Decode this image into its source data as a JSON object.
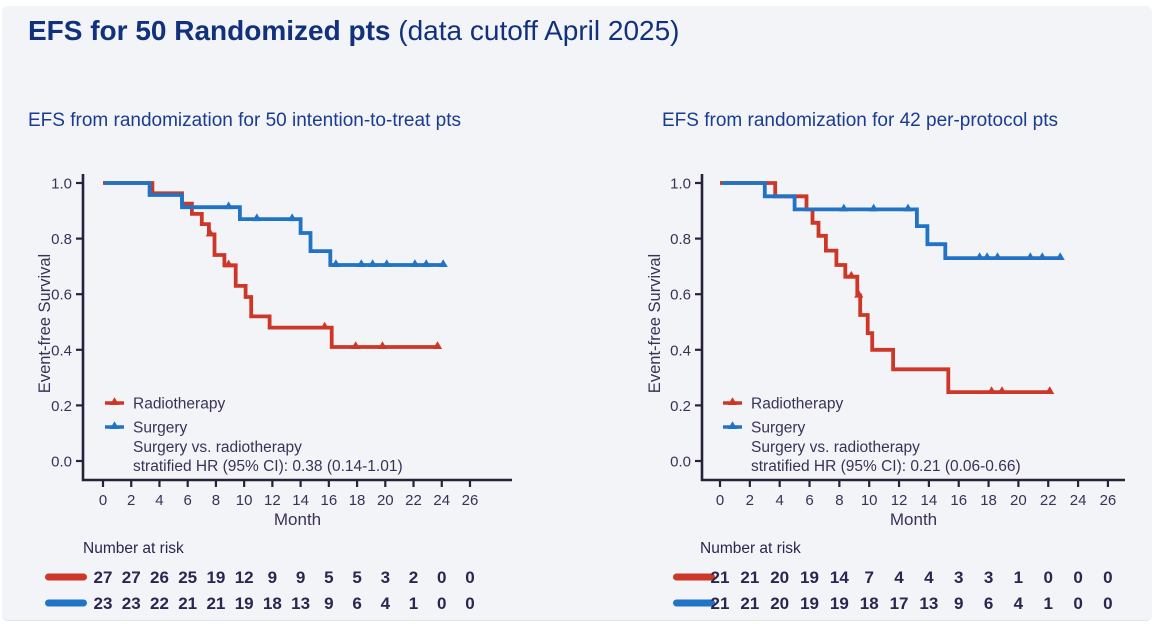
{
  "slide": {
    "title_bold": "EFS for 50 Randomized pts",
    "title_tail": " (data cutoff April 2025)",
    "colors": {
      "title": "#12317c",
      "subtitle": "#1a3c90",
      "radiotherapy": "#cd3727",
      "surgery": "#2173c5",
      "ink": "#3a3157",
      "risk_ink": "#2b2550",
      "spine": "#27213a",
      "background": "#f3f4f8"
    }
  },
  "chart_data": [
    {
      "type": "line",
      "subtype": "kaplan-meier-step",
      "subtitle": "EFS from randomization for 50 intention-to-treat pts",
      "xlabel": "Month",
      "ylabel": "Event-free Survival",
      "x_ticks": [
        0,
        2,
        4,
        6,
        8,
        10,
        12,
        14,
        16,
        18,
        20,
        22,
        24,
        26
      ],
      "y_ticks": [
        1.0,
        0.8,
        0.6,
        0.4,
        0.2,
        0.0
      ],
      "xlim": [
        0,
        26
      ],
      "ylim": [
        0,
        1
      ],
      "legend_position": "bottom-left-inside",
      "annotation": [
        "Surgery vs. radiotherapy",
        "stratified HR (95% CI): 0.38 (0.14-1.01)"
      ],
      "series": [
        {
          "name": "Radiotherapy",
          "color_key": "radiotherapy",
          "steps": [
            [
              0,
              1.0
            ],
            [
              3.5,
              1.0
            ],
            [
              3.5,
              0.963
            ],
            [
              5.6,
              0.963
            ],
            [
              5.6,
              0.926
            ],
            [
              6.3,
              0.926
            ],
            [
              6.3,
              0.889
            ],
            [
              7.0,
              0.889
            ],
            [
              7.0,
              0.852
            ],
            [
              7.5,
              0.852
            ],
            [
              7.5,
              0.815
            ],
            [
              7.9,
              0.815
            ],
            [
              7.9,
              0.741
            ],
            [
              8.6,
              0.741
            ],
            [
              8.6,
              0.704
            ],
            [
              9.4,
              0.704
            ],
            [
              9.4,
              0.63
            ],
            [
              10.1,
              0.63
            ],
            [
              10.1,
              0.59
            ],
            [
              10.5,
              0.59
            ],
            [
              10.5,
              0.52
            ],
            [
              11.8,
              0.52
            ],
            [
              11.8,
              0.48
            ],
            [
              16.2,
              0.48
            ],
            [
              16.2,
              0.41
            ],
            [
              23.8,
              0.41
            ]
          ],
          "censors": [
            [
              7.6,
              0.815
            ],
            [
              8.9,
              0.704
            ],
            [
              15.7,
              0.48
            ],
            [
              17.9,
              0.41
            ],
            [
              19.8,
              0.41
            ],
            [
              23.7,
              0.41
            ]
          ]
        },
        {
          "name": "Surgery",
          "color_key": "surgery",
          "steps": [
            [
              0.1,
              1.0
            ],
            [
              3.3,
              1.0
            ],
            [
              3.3,
              0.957
            ],
            [
              5.6,
              0.957
            ],
            [
              5.6,
              0.913
            ],
            [
              9.7,
              0.913
            ],
            [
              9.7,
              0.87
            ],
            [
              14.0,
              0.87
            ],
            [
              14.0,
              0.82
            ],
            [
              14.7,
              0.82
            ],
            [
              14.7,
              0.755
            ],
            [
              16.1,
              0.755
            ],
            [
              16.1,
              0.705
            ],
            [
              24.2,
              0.705
            ]
          ],
          "censors": [
            [
              8.9,
              0.913
            ],
            [
              10.9,
              0.87
            ],
            [
              13.4,
              0.87
            ],
            [
              16.5,
              0.705
            ],
            [
              18.3,
              0.705
            ],
            [
              19.1,
              0.705
            ],
            [
              20.1,
              0.705
            ],
            [
              22.1,
              0.705
            ],
            [
              22.9,
              0.705
            ],
            [
              24.1,
              0.705
            ]
          ]
        }
      ],
      "risk_table": {
        "title": "Number at risk",
        "rows": [
          {
            "name": "Radiotherapy",
            "color_key": "radiotherapy",
            "values": [
              27,
              27,
              26,
              25,
              19,
              12,
              9,
              9,
              5,
              5,
              3,
              2,
              0,
              0
            ]
          },
          {
            "name": "Surgery",
            "color_key": "surgery",
            "values": [
              23,
              23,
              22,
              21,
              21,
              19,
              18,
              13,
              9,
              6,
              4,
              1,
              0,
              0
            ]
          }
        ]
      }
    },
    {
      "type": "line",
      "subtype": "kaplan-meier-step",
      "subtitle": "EFS from randomization for 42 per-protocol pts",
      "xlabel": "Month",
      "ylabel": "Event-free Survival",
      "x_ticks": [
        0,
        2,
        4,
        6,
        8,
        10,
        12,
        14,
        16,
        18,
        20,
        22,
        24,
        26
      ],
      "y_ticks": [
        1.0,
        0.8,
        0.6,
        0.4,
        0.2,
        0.0
      ],
      "xlim": [
        0,
        26
      ],
      "ylim": [
        0,
        1
      ],
      "legend_position": "bottom-left-inside",
      "annotation": [
        "Surgery vs. radiotherapy",
        "stratified HR (95% CI): 0.21 (0.06-0.66)"
      ],
      "series": [
        {
          "name": "Radiotherapy",
          "color_key": "radiotherapy",
          "steps": [
            [
              0,
              1.0
            ],
            [
              3.7,
              1.0
            ],
            [
              3.7,
              0.952
            ],
            [
              5.8,
              0.952
            ],
            [
              5.8,
              0.905
            ],
            [
              6.2,
              0.905
            ],
            [
              6.2,
              0.857
            ],
            [
              6.6,
              0.857
            ],
            [
              6.6,
              0.81
            ],
            [
              7.1,
              0.81
            ],
            [
              7.1,
              0.757
            ],
            [
              7.8,
              0.757
            ],
            [
              7.8,
              0.705
            ],
            [
              8.4,
              0.705
            ],
            [
              8.4,
              0.663
            ],
            [
              9.2,
              0.663
            ],
            [
              9.2,
              0.595
            ],
            [
              9.4,
              0.595
            ],
            [
              9.4,
              0.525
            ],
            [
              9.9,
              0.525
            ],
            [
              9.9,
              0.46
            ],
            [
              10.2,
              0.46
            ],
            [
              10.2,
              0.4
            ],
            [
              11.6,
              0.4
            ],
            [
              11.6,
              0.33
            ],
            [
              15.3,
              0.33
            ],
            [
              15.3,
              0.248
            ],
            [
              22.2,
              0.248
            ]
          ],
          "censors": [
            [
              8.8,
              0.663
            ],
            [
              9.3,
              0.595
            ],
            [
              18.2,
              0.248
            ],
            [
              18.9,
              0.248
            ],
            [
              22.1,
              0.248
            ]
          ]
        },
        {
          "name": "Surgery",
          "color_key": "surgery",
          "steps": [
            [
              0.15,
              1.0
            ],
            [
              3.0,
              1.0
            ],
            [
              3.0,
              0.952
            ],
            [
              5.0,
              0.952
            ],
            [
              5.0,
              0.905
            ],
            [
              13.2,
              0.905
            ],
            [
              13.2,
              0.845
            ],
            [
              13.9,
              0.845
            ],
            [
              13.9,
              0.78
            ],
            [
              15.1,
              0.78
            ],
            [
              15.1,
              0.73
            ],
            [
              22.9,
              0.73
            ]
          ],
          "censors": [
            [
              8.3,
              0.905
            ],
            [
              10.3,
              0.905
            ],
            [
              12.6,
              0.905
            ],
            [
              17.4,
              0.73
            ],
            [
              17.9,
              0.73
            ],
            [
              18.6,
              0.73
            ],
            [
              20.8,
              0.73
            ],
            [
              21.6,
              0.73
            ],
            [
              22.8,
              0.73
            ]
          ]
        }
      ],
      "risk_table": {
        "title": "Number at risk",
        "rows": [
          {
            "name": "Radiotherapy",
            "color_key": "radiotherapy",
            "values": [
              21,
              21,
              20,
              19,
              14,
              7,
              4,
              4,
              3,
              3,
              1,
              0,
              0,
              0
            ]
          },
          {
            "name": "Surgery",
            "color_key": "surgery",
            "values": [
              21,
              21,
              20,
              19,
              19,
              18,
              17,
              13,
              9,
              6,
              4,
              1,
              0,
              0
            ]
          }
        ]
      }
    }
  ]
}
